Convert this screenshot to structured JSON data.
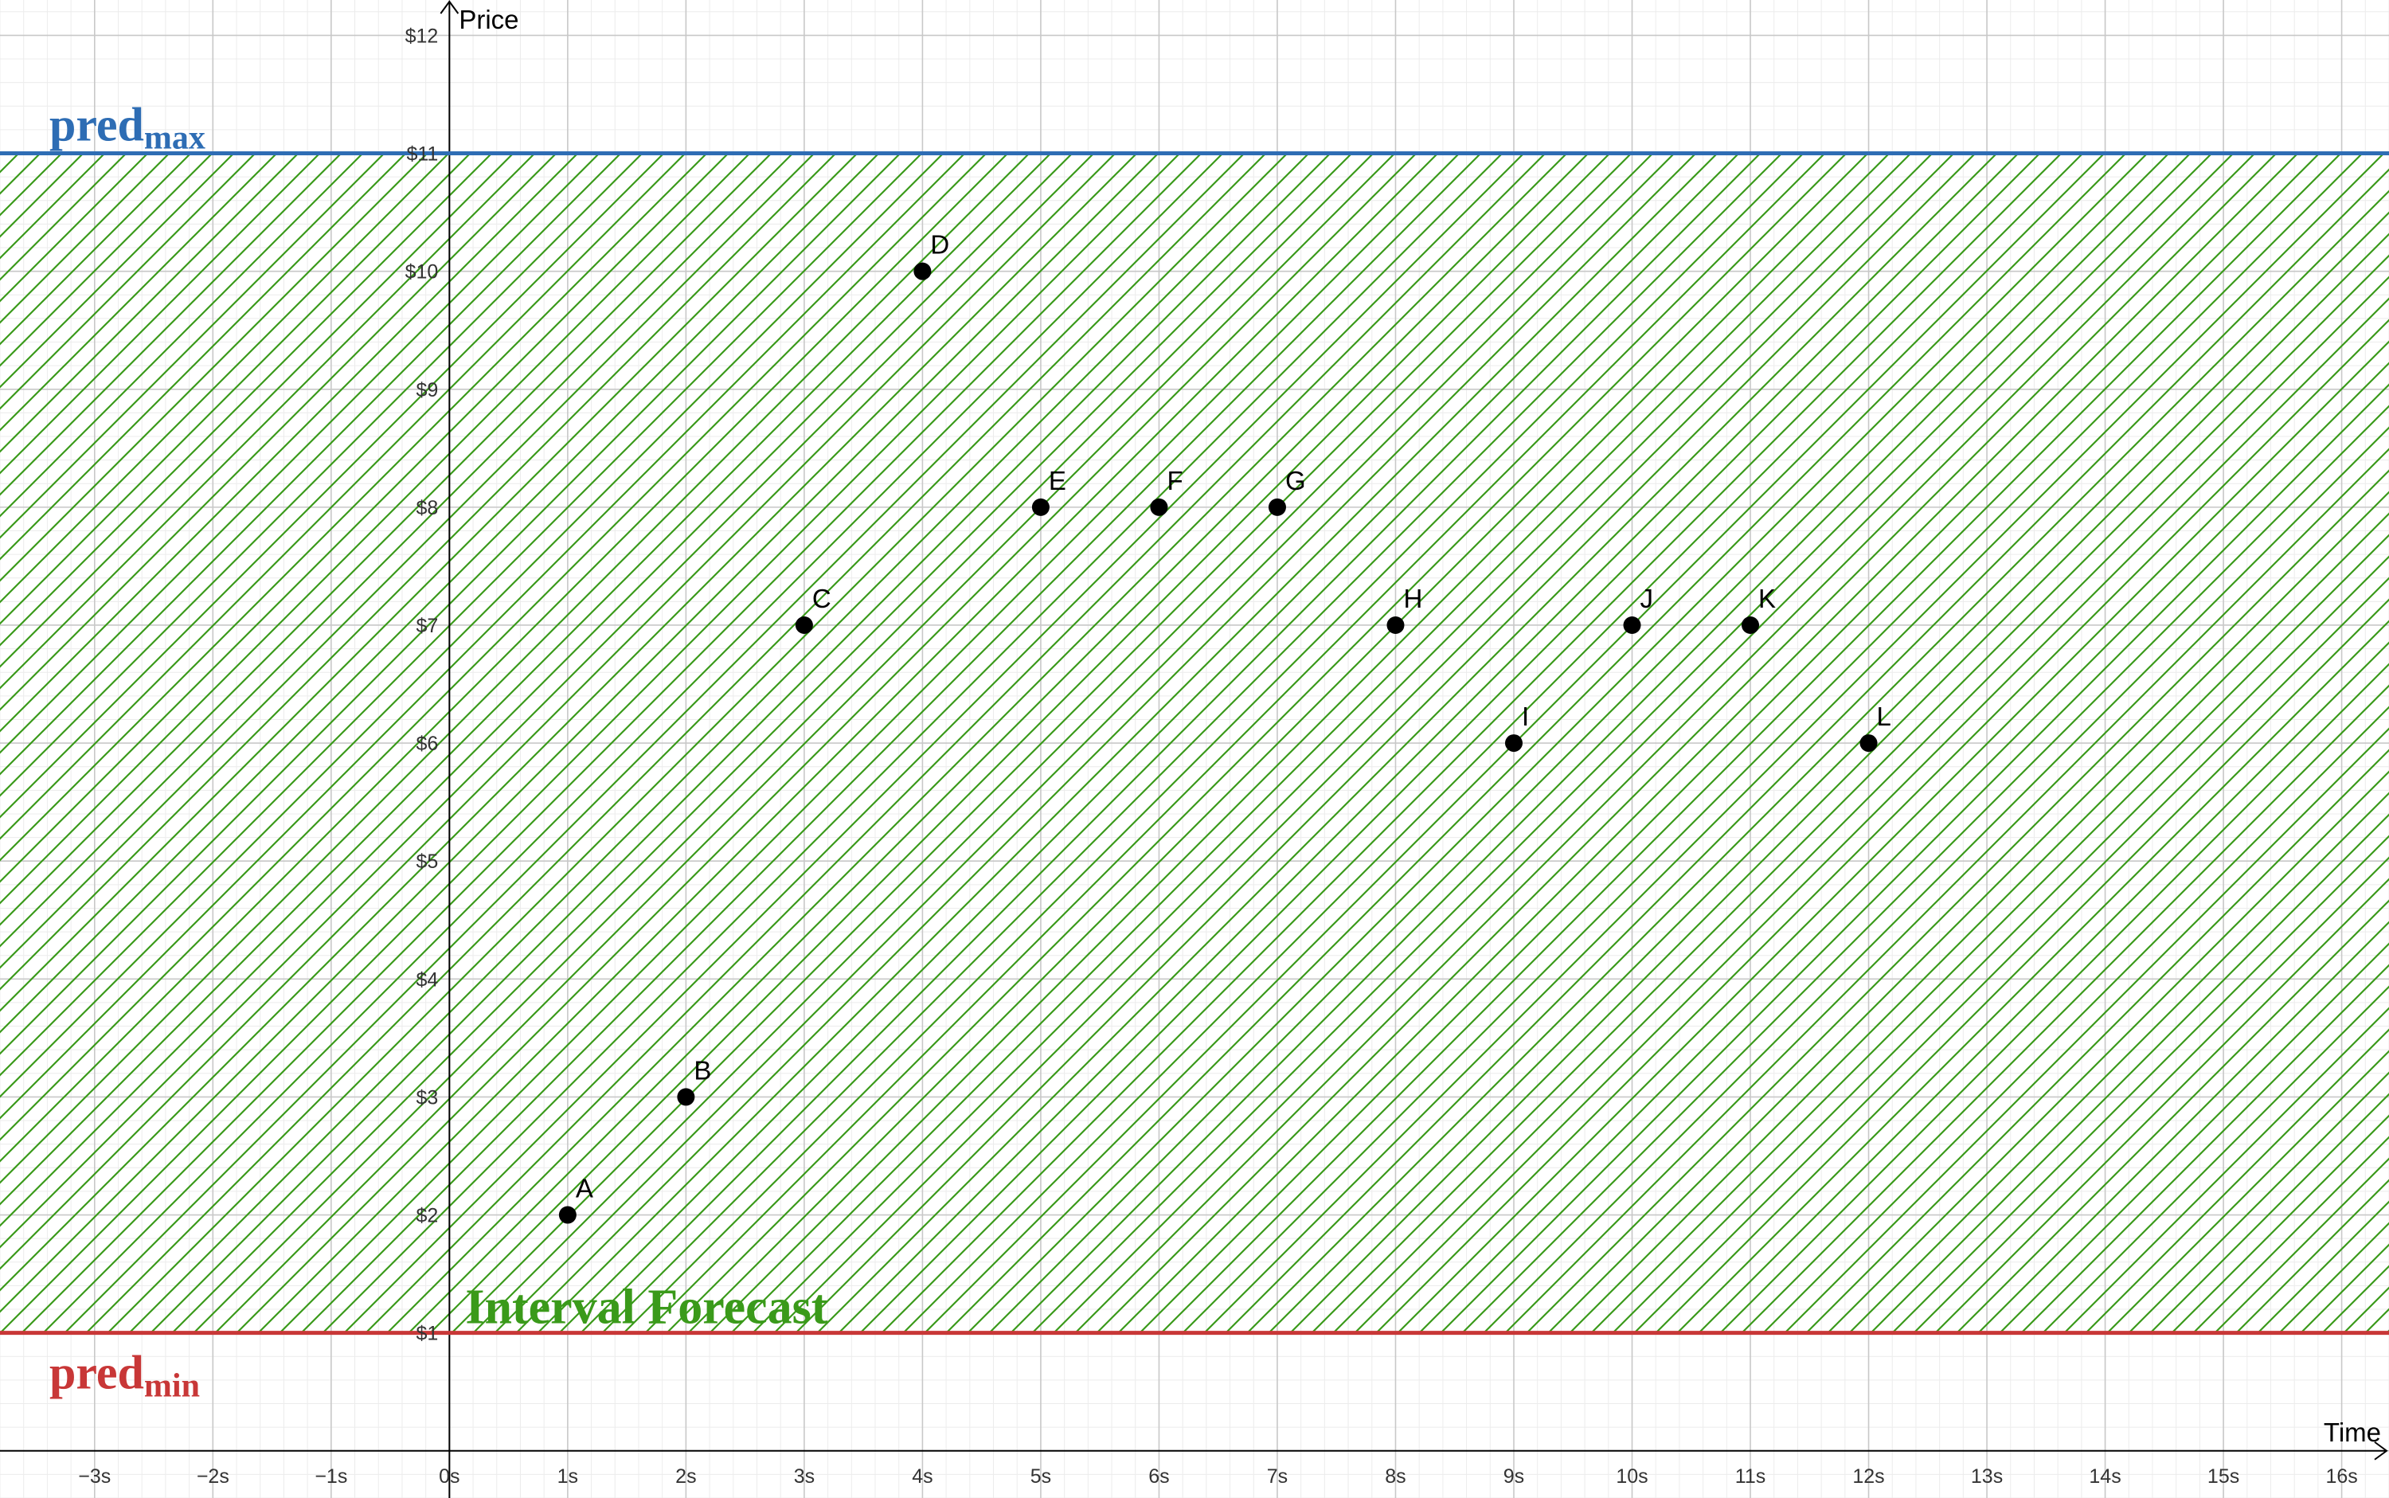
{
  "chart_data": {
    "type": "scatter",
    "xlabel": "Time",
    "ylabel": "Price",
    "xlim": [
      -3.8,
      16.4
    ],
    "ylim": [
      -0.4,
      12.3
    ],
    "grid": true,
    "x_ticks": [
      -3,
      -2,
      -1,
      0,
      1,
      2,
      3,
      4,
      5,
      6,
      7,
      8,
      9,
      10,
      11,
      12,
      13,
      14,
      15,
      16
    ],
    "x_tick_labels": [
      "−3s",
      "−2s",
      "−1s",
      "0s",
      "1s",
      "2s",
      "3s",
      "4s",
      "5s",
      "6s",
      "7s",
      "8s",
      "9s",
      "10s",
      "11s",
      "12s",
      "13s",
      "14s",
      "15s",
      "16s"
    ],
    "y_ticks": [
      1,
      2,
      3,
      4,
      5,
      6,
      7,
      8,
      9,
      10,
      11,
      12
    ],
    "y_tick_labels": [
      "$1",
      "$2",
      "$3",
      "$4",
      "$5",
      "$6",
      "$7",
      "$8",
      "$9",
      "$10",
      "$11",
      "$12"
    ],
    "points": [
      {
        "label": "A",
        "x": 1,
        "y": 2
      },
      {
        "label": "B",
        "x": 2,
        "y": 3
      },
      {
        "label": "C",
        "x": 3,
        "y": 7
      },
      {
        "label": "D",
        "x": 4,
        "y": 10
      },
      {
        "label": "E",
        "x": 5,
        "y": 8
      },
      {
        "label": "F",
        "x": 6,
        "y": 8
      },
      {
        "label": "G",
        "x": 7,
        "y": 8
      },
      {
        "label": "H",
        "x": 8,
        "y": 7
      },
      {
        "label": "I",
        "x": 9,
        "y": 6
      },
      {
        "label": "J",
        "x": 10,
        "y": 7
      },
      {
        "label": "K",
        "x": 11,
        "y": 7
      },
      {
        "label": "L",
        "x": 12,
        "y": 6
      }
    ],
    "lines": [
      {
        "name_main": "pred",
        "name_sub": "max",
        "y": 11,
        "color": "#2e6db4"
      },
      {
        "name_main": "pred",
        "name_sub": "min",
        "y": 1,
        "color": "#c83737"
      }
    ],
    "region": {
      "label": "Interval Forecast",
      "y_from": 1,
      "y_to": 11,
      "color": "#3a9a1a",
      "fill": "hatched"
    },
    "colors": {
      "point": "#000000",
      "grid_major": "#c8c8c8",
      "grid_minor": "#ececec",
      "axis": "#000000"
    }
  }
}
